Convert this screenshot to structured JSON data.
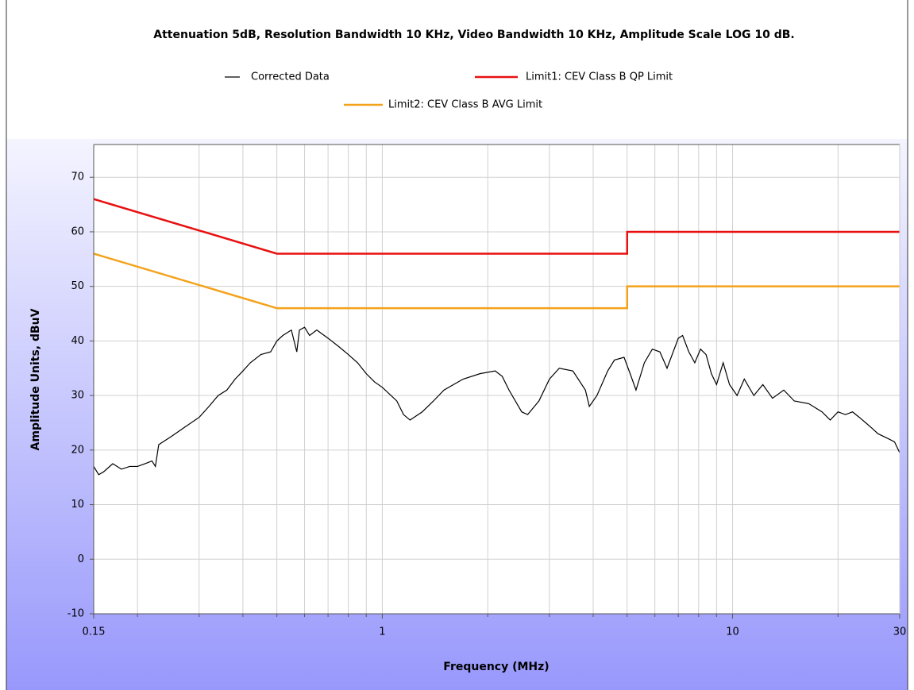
{
  "chart_data": {
    "type": "line",
    "title": "Attenuation 5dB, Resolution Bandwidth 10 KHz, Video Bandwidth 10 KHz, Amplitude Scale LOG 10 dB.",
    "xlabel": "Frequency (MHz)",
    "ylabel": "Amplitude Units, dBuV",
    "xscale": "log",
    "xlim": [
      0.15,
      30
    ],
    "xticks": [
      0.15,
      1,
      10,
      30
    ],
    "xminorticks": [
      0.2,
      0.3,
      0.4,
      0.5,
      0.6,
      0.7,
      0.8,
      0.9,
      2,
      3,
      4,
      5,
      6,
      7,
      8,
      9,
      20
    ],
    "ylim": [
      -10,
      76
    ],
    "yticks": [
      -10,
      0,
      10,
      20,
      30,
      40,
      50,
      60,
      70
    ],
    "grid": true,
    "legend": "top",
    "series": [
      {
        "name": "Corrected Data",
        "color": "#000000",
        "x": [
          0.15,
          0.155,
          0.16,
          0.17,
          0.18,
          0.19,
          0.2,
          0.21,
          0.22,
          0.225,
          0.23,
          0.25,
          0.27,
          0.3,
          0.32,
          0.34,
          0.36,
          0.38,
          0.4,
          0.42,
          0.45,
          0.48,
          0.5,
          0.52,
          0.55,
          0.57,
          0.58,
          0.6,
          0.62,
          0.65,
          0.7,
          0.75,
          0.8,
          0.85,
          0.9,
          0.95,
          1.0,
          1.1,
          1.15,
          1.2,
          1.3,
          1.4,
          1.5,
          1.7,
          1.9,
          2.1,
          2.2,
          2.3,
          2.5,
          2.6,
          2.8,
          3.0,
          3.2,
          3.5,
          3.8,
          3.9,
          4.1,
          4.4,
          4.6,
          4.9,
          5.1,
          5.3,
          5.6,
          5.9,
          6.2,
          6.5,
          7.0,
          7.2,
          7.5,
          7.8,
          8.1,
          8.4,
          8.7,
          9.0,
          9.4,
          9.8,
          10.3,
          10.8,
          11.5,
          12.2,
          13,
          14,
          15,
          16.5,
          18,
          19,
          20,
          21,
          22,
          23,
          24,
          25,
          26,
          27,
          28,
          29,
          30
        ],
        "values": [
          17,
          15.5,
          16,
          17.5,
          16.5,
          17,
          17,
          17.5,
          18,
          17,
          21,
          22.5,
          24,
          26,
          28,
          30,
          31,
          33,
          34.5,
          36,
          37.5,
          38,
          40,
          41,
          42,
          38,
          42,
          42.5,
          41,
          42,
          40.5,
          39,
          37.5,
          36,
          34,
          32.5,
          31.5,
          29,
          26.5,
          25.5,
          27,
          29,
          31,
          33,
          34,
          34.5,
          33.5,
          31,
          27,
          26.5,
          29,
          33,
          35,
          34.5,
          31,
          28,
          30,
          34.5,
          36.5,
          37,
          34,
          31,
          36,
          38.5,
          38,
          35,
          40.5,
          41,
          38,
          36,
          38.5,
          37.5,
          34,
          32,
          36,
          32,
          30,
          33,
          30,
          32,
          29.5,
          31,
          29,
          28.5,
          27,
          25.5,
          27,
          26.5,
          27,
          26,
          25,
          24,
          23,
          22.5,
          22,
          21.5,
          19.5
        ]
      },
      {
        "name": "Limit1: CEV Class B QP Limit",
        "color": "#e81010",
        "x": [
          0.15,
          0.5,
          5,
          5,
          30
        ],
        "values": [
          66,
          56,
          56,
          60,
          60
        ]
      },
      {
        "name": "Limit2: CEV Class B AVG Limit",
        "color": "#f4a21a",
        "x": [
          0.15,
          0.5,
          5,
          5,
          30
        ],
        "values": [
          56,
          46,
          46,
          50,
          50
        ]
      }
    ]
  }
}
